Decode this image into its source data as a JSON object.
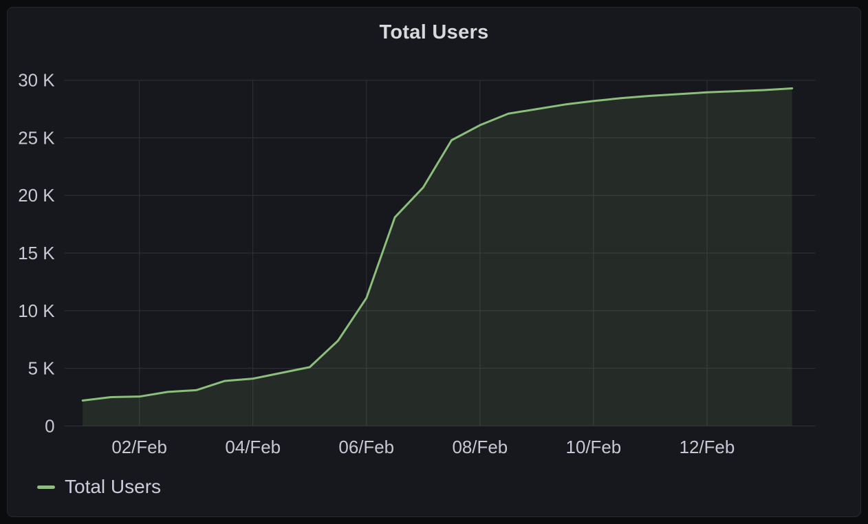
{
  "panel": {
    "title": "Total Users"
  },
  "legend": {
    "position": "bottom-left",
    "items": [
      {
        "label": "Total Users",
        "color": "#8CBE7C"
      }
    ]
  },
  "colors": {
    "page_bg": "#0b0c0e",
    "panel_bg": "#17181d",
    "panel_border": "#26282e",
    "grid": "#2f3338",
    "axis_text": "#c8c9d3",
    "title_text": "#d8d9da",
    "legend_text": "#ccccdc",
    "series_line": "#8CBE7C",
    "series_fill_opacity": 0.12
  },
  "chart_data": {
    "type": "area",
    "title": "Total Users",
    "xlabel": "",
    "ylabel": "",
    "grid": true,
    "legend_position": "bottom-left",
    "x_unit": "day of February",
    "xlim_days_feb": [
      0.68,
      13.9
    ],
    "ylim": [
      0,
      30400
    ],
    "series": [
      {
        "name": "Total Users",
        "color": "#8CBE7C",
        "x_days_feb": [
          1,
          1.5,
          2,
          2.5,
          3,
          3.5,
          4,
          4.5,
          5,
          5.5,
          6,
          6.5,
          7,
          7.5,
          8,
          8.5,
          9,
          9.5,
          10,
          10.5,
          11,
          11.5,
          12,
          12.5,
          13,
          13.5
        ],
        "values": [
          2200,
          2500,
          2550,
          2950,
          3100,
          3900,
          4100,
          4600,
          5100,
          7400,
          11100,
          18100,
          20700,
          24800,
          26100,
          27100,
          27500,
          27900,
          28200,
          28450,
          28650,
          28800,
          28950,
          29050,
          29150,
          29300
        ]
      }
    ],
    "x_ticks": [
      {
        "day": 2,
        "label": "02/Feb"
      },
      {
        "day": 4,
        "label": "04/Feb"
      },
      {
        "day": 6,
        "label": "06/Feb"
      },
      {
        "day": 8,
        "label": "08/Feb"
      },
      {
        "day": 10,
        "label": "10/Feb"
      },
      {
        "day": 12,
        "label": "12/Feb"
      }
    ],
    "y_ticks": [
      {
        "value": 0,
        "label": "0"
      },
      {
        "value": 5000,
        "label": "5 K"
      },
      {
        "value": 10000,
        "label": "10 K"
      },
      {
        "value": 15000,
        "label": "15 K"
      },
      {
        "value": 20000,
        "label": "20 K"
      },
      {
        "value": 25000,
        "label": "25 K"
      },
      {
        "value": 30000,
        "label": "30 K"
      }
    ]
  }
}
